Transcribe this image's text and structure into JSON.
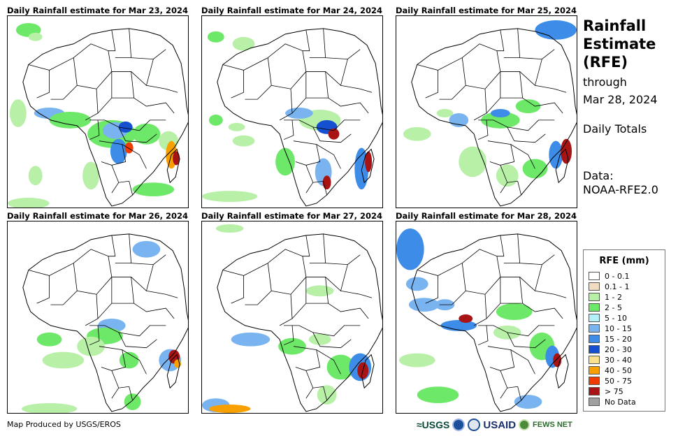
{
  "panels": [
    {
      "title": "Daily Rainfall estimate for Mar 23, 2024",
      "pattern": "a"
    },
    {
      "title": "Daily Rainfall estimate for Mar 24, 2024",
      "pattern": "b"
    },
    {
      "title": "Daily Rainfall estimate for Mar 25, 2024",
      "pattern": "c"
    },
    {
      "title": "Daily Rainfall estimate for Mar 26, 2024",
      "pattern": "d"
    },
    {
      "title": "Daily Rainfall estimate for Mar 27, 2024",
      "pattern": "e"
    },
    {
      "title": "Daily Rainfall estimate for Mar 28, 2024",
      "pattern": "f"
    }
  ],
  "header": {
    "title_line1": "Rainfall",
    "title_line2": "Estimate",
    "title_line3": "(RFE)",
    "through_line1": "through",
    "through_line2": "Mar 28, 2024",
    "daily_totals": "Daily Totals",
    "data_label": "Data:",
    "data_source": "NOAA-RFE2.0"
  },
  "legend": {
    "title": "RFE (mm)",
    "items": [
      {
        "label": "0 - 0.1",
        "color": "#ffffff"
      },
      {
        "label": "0.1 - 1",
        "color": "#f0dcc0"
      },
      {
        "label": "1 - 2",
        "color": "#b8f0a8"
      },
      {
        "label": "2 - 5",
        "color": "#6ee868"
      },
      {
        "label": "5 - 10",
        "color": "#b4f0f8"
      },
      {
        "label": "10 - 15",
        "color": "#7ab4f0"
      },
      {
        "label": "15 - 20",
        "color": "#3c8ce8"
      },
      {
        "label": "20 - 30",
        "color": "#1450d0"
      },
      {
        "label": "30 - 40",
        "color": "#f8e08c"
      },
      {
        "label": "40 - 50",
        "color": "#f8a000"
      },
      {
        "label": "50 - 75",
        "color": "#f03c00"
      },
      {
        "label": "> 75",
        "color": "#a81414"
      },
      {
        "label": "No Data",
        "color": "#a0a0a0"
      }
    ]
  },
  "footer": {
    "credit": "Map Produced by USGS/EROS",
    "logo_usgs": "≈USGS",
    "logo_usaid": "USAID",
    "logo_fews": "FEWS NET"
  }
}
